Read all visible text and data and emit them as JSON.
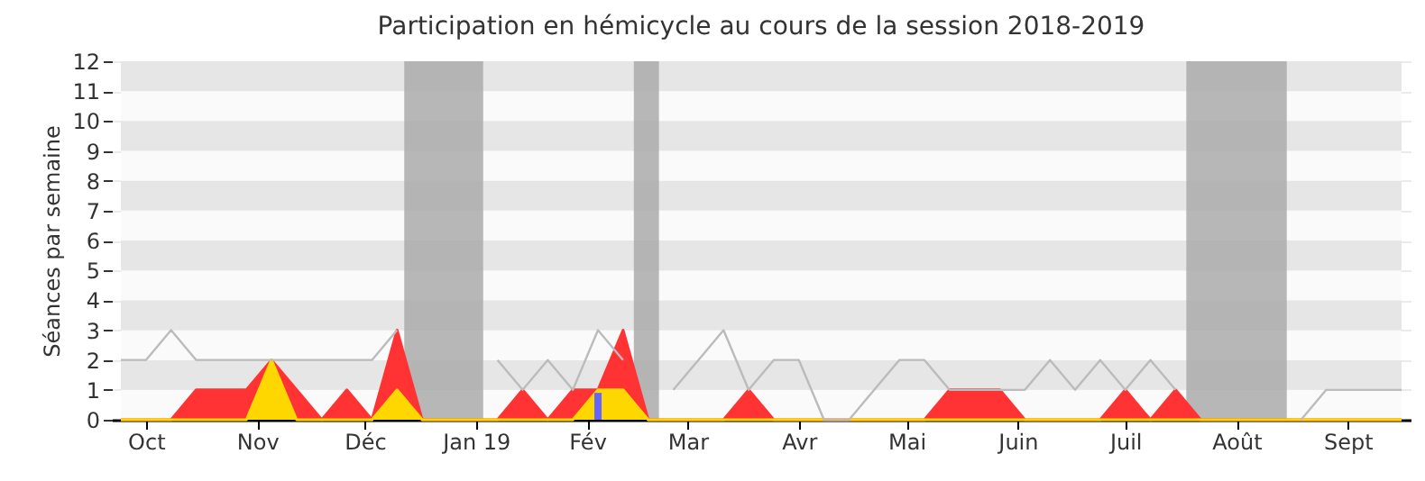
{
  "chart_data": {
    "type": "area",
    "title": "Participation en hémicycle au cours de la session 2018-2019",
    "ylabel": "Séances par semaine",
    "x": [
      "2018-09-24",
      "2018-10-01",
      "2018-10-08",
      "2018-10-15",
      "2018-10-22",
      "2018-10-29",
      "2018-11-05",
      "2018-11-12",
      "2018-11-19",
      "2018-11-26",
      "2018-12-03",
      "2018-12-10",
      "2018-12-17",
      "2018-12-24",
      "2018-12-31",
      "2019-01-07",
      "2019-01-14",
      "2019-01-21",
      "2019-01-28",
      "2019-02-04",
      "2019-02-11",
      "2019-02-18",
      "2019-02-25",
      "2019-03-04",
      "2019-03-11",
      "2019-03-18",
      "2019-03-25",
      "2019-04-01",
      "2019-04-08",
      "2019-04-15",
      "2019-04-22",
      "2019-04-29",
      "2019-05-06",
      "2019-05-13",
      "2019-05-20",
      "2019-05-27",
      "2019-06-03",
      "2019-06-10",
      "2019-06-17",
      "2019-06-24",
      "2019-07-01",
      "2019-07-08",
      "2019-07-15",
      "2019-07-22",
      "2019-07-29",
      "2019-08-05",
      "2019-08-12",
      "2019-08-19",
      "2019-08-26",
      "2019-09-02",
      "2019-09-09",
      "2019-09-16"
    ],
    "series": [
      {
        "type": "line",
        "color": "#bbbbbb",
        "values": [
          2,
          2,
          3,
          2,
          2,
          2,
          2,
          2,
          2,
          2,
          2,
          3,
          null,
          null,
          null,
          2,
          1,
          2,
          1,
          3,
          2,
          null,
          1,
          2,
          3,
          1,
          2,
          2,
          0,
          0,
          1,
          2,
          2,
          1,
          1,
          1,
          1,
          2,
          1,
          2,
          1,
          2,
          1,
          null,
          null,
          null,
          null,
          0,
          1,
          1,
          1,
          1
        ]
      },
      {
        "color": "#ff3333",
        "values": [
          0,
          0,
          0,
          1,
          1,
          1,
          2,
          1,
          0,
          1,
          0,
          3,
          0,
          0,
          0,
          0,
          1,
          0,
          1,
          1,
          3,
          0,
          0,
          0,
          0,
          1,
          0,
          0,
          0,
          0,
          0,
          0,
          0,
          1,
          1,
          1,
          0,
          0,
          0,
          0,
          1,
          0,
          1,
          0,
          0,
          0,
          0,
          0,
          0,
          0,
          0,
          0
        ]
      },
      {
        "color": "#ffd700",
        "values": [
          0,
          0,
          0,
          0,
          0,
          0,
          2,
          0,
          0,
          0,
          0,
          1,
          0,
          0,
          0,
          0,
          0,
          0,
          0,
          1,
          1,
          0,
          0,
          0,
          0,
          0,
          0,
          0,
          0,
          0,
          0,
          0,
          0,
          0,
          0,
          0,
          0,
          0,
          0,
          0,
          0,
          0,
          0,
          0,
          0,
          0,
          0,
          0,
          0,
          0,
          0,
          0
        ]
      },
      {
        "type": "bar",
        "color": "#6666ff",
        "x": [
          "2019-02-04"
        ],
        "values": [
          0.9
        ]
      }
    ],
    "bands": [
      {
        "axis": "x",
        "from": "2018-12-12",
        "to": "2019-01-03",
        "color": "#aaaaaa"
      },
      {
        "axis": "x",
        "from": "2019-02-14",
        "to": "2019-02-21",
        "color": "#aaaaaa"
      },
      {
        "axis": "x",
        "from": "2019-07-18",
        "to": "2019-08-15",
        "color": "#aaaaaa"
      }
    ],
    "xlim": [
      "2018-09-24",
      "2019-09-16"
    ],
    "xticks": [
      {
        "value": "2018-10-01",
        "label": "Oct"
      },
      {
        "value": "2018-11-01",
        "label": "Nov"
      },
      {
        "value": "2018-12-01",
        "label": "Déc"
      },
      {
        "value": "2019-01-01",
        "label": "Jan 19"
      },
      {
        "value": "2019-02-01",
        "label": "Fév"
      },
      {
        "value": "2019-03-01",
        "label": "Mar"
      },
      {
        "value": "2019-04-01",
        "label": "Avr"
      },
      {
        "value": "2019-05-01",
        "label": "Mai"
      },
      {
        "value": "2019-06-01",
        "label": "Juin"
      },
      {
        "value": "2019-07-01",
        "label": "Juil"
      },
      {
        "value": "2019-08-01",
        "label": "Août"
      },
      {
        "value": "2019-09-01",
        "label": "Sept"
      }
    ],
    "ylim": [
      0,
      12
    ],
    "yticks": [
      0,
      1,
      2,
      3,
      4,
      5,
      6,
      7,
      8,
      9,
      10,
      11,
      12
    ],
    "grid": "y"
  }
}
